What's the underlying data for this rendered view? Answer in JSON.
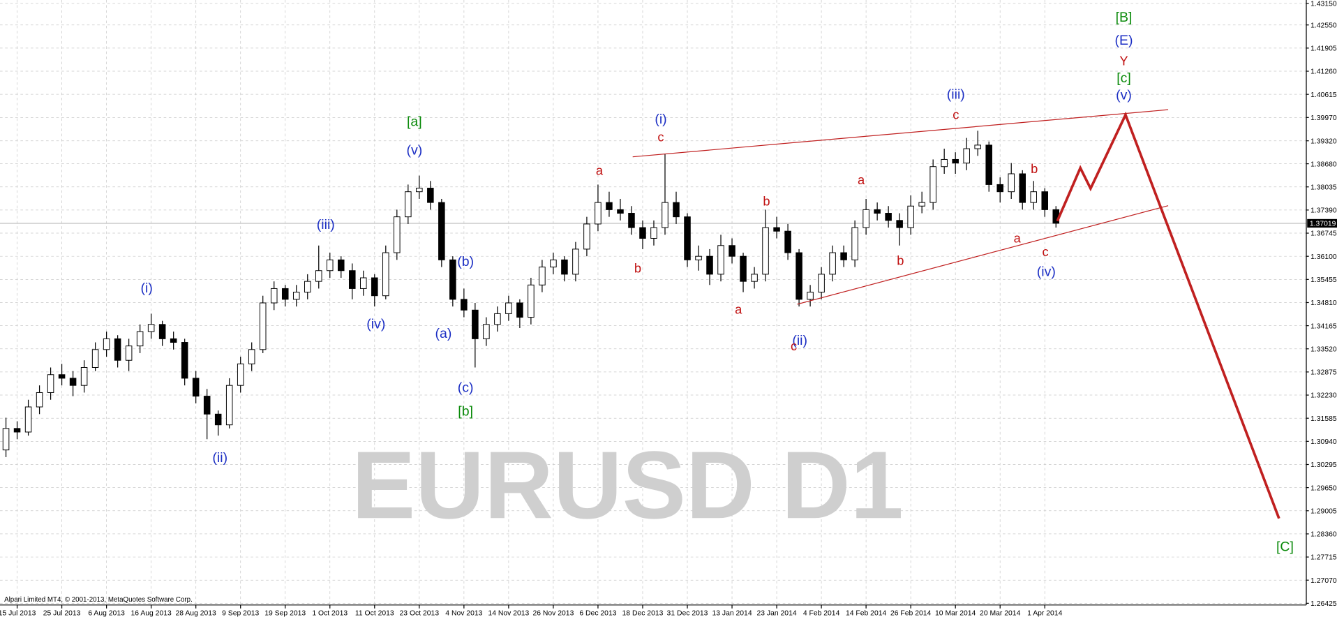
{
  "chart_data": {
    "type": "candlestick",
    "watermark": "EURUSD D1",
    "copyright": "Alpari Limited MT4, © 2001-2013, MetaQuotes Software Corp.",
    "current_price": 1.37019,
    "up_color": "#ffffff",
    "down_color": "#000000",
    "grid": true,
    "ylim": [
      1.26425,
      1.4315
    ],
    "yticks": [
      {
        "value": 1.4315,
        "label": "1.43150"
      },
      {
        "value": 1.4255,
        "label": "1.42550"
      },
      1.41905,
      {
        "value": 1.4126,
        "label": "1.41260"
      },
      1.40615,
      {
        "value": 1.3997,
        "label": "1.39970"
      },
      {
        "value": 1.3932,
        "label": "1.39320"
      },
      {
        "value": 1.3868,
        "label": "1.38680"
      },
      1.38035,
      {
        "value": 1.3739,
        "label": "1.37390"
      },
      1.36745,
      {
        "value": 1.361,
        "label": "1.36100"
      },
      1.35455,
      {
        "value": 1.3481,
        "label": "1.34810"
      },
      1.34165,
      {
        "value": 1.3352,
        "label": "1.33520"
      },
      1.32875,
      {
        "value": 1.3223,
        "label": "1.32230"
      },
      1.31585,
      {
        "value": 1.3094,
        "label": "1.30940"
      },
      1.30295,
      {
        "value": 1.2965,
        "label": "1.29650"
      },
      1.29005,
      {
        "value": 1.2836,
        "label": "1.28360"
      },
      1.27715,
      {
        "value": 1.2707,
        "label": "1.27070"
      },
      1.26425
    ],
    "categories": [
      null,
      "15 Jul 2013",
      null,
      null,
      null,
      "25 Jul 2013",
      null,
      null,
      null,
      "6 Aug 2013",
      null,
      null,
      null,
      "16 Aug 2013",
      null,
      null,
      null,
      "28 Aug 2013",
      null,
      null,
      null,
      "9 Sep 2013",
      null,
      null,
      null,
      "19 Sep 2013",
      null,
      null,
      null,
      "1 Oct 2013",
      null,
      null,
      null,
      "11 Oct 2013",
      null,
      null,
      null,
      "23 Oct 2013",
      null,
      null,
      null,
      "4 Nov 2013",
      null,
      null,
      null,
      "14 Nov 2013",
      null,
      null,
      null,
      "26 Nov 2013",
      null,
      null,
      null,
      "6 Dec 2013",
      null,
      null,
      null,
      "18 Dec 2013",
      null,
      null,
      null,
      "31 Dec 2013",
      null,
      null,
      null,
      "13 Jan 2014",
      null,
      null,
      null,
      "23 Jan 2014",
      null,
      null,
      null,
      "4 Feb 2014",
      null,
      null,
      null,
      "14 Feb 2014",
      null,
      null,
      null,
      "26 Feb 2014",
      null,
      null,
      null,
      "10 Mar 2014",
      null,
      null,
      null,
      "20 Mar 2014",
      null,
      null,
      null,
      "1 Apr 2014",
      null
    ],
    "open": [
      1.307,
      1.313,
      1.312,
      1.319,
      1.323,
      1.328,
      1.327,
      1.325,
      1.33,
      1.335,
      1.338,
      1.332,
      1.336,
      1.34,
      1.342,
      1.338,
      1.337,
      1.327,
      1.322,
      1.317,
      1.314,
      1.325,
      1.331,
      1.335,
      1.348,
      1.352,
      1.349,
      1.351,
      1.354,
      1.357,
      1.36,
      1.357,
      1.352,
      1.355,
      1.35,
      1.362,
      1.372,
      1.379,
      1.38,
      1.376,
      1.36,
      1.349,
      1.346,
      1.338,
      1.342,
      1.345,
      1.348,
      1.344,
      1.353,
      1.358,
      1.36,
      1.356,
      1.363,
      1.37,
      1.376,
      1.374,
      1.373,
      1.369,
      1.366,
      1.369,
      1.376,
      1.372,
      1.36,
      1.361,
      1.356,
      1.364,
      1.361,
      1.354,
      1.356,
      1.369,
      1.368,
      1.362,
      1.349,
      1.351,
      1.356,
      1.362,
      1.36,
      1.369,
      1.374,
      1.373,
      1.371,
      1.369,
      1.375,
      1.376,
      1.386,
      1.388,
      1.387,
      1.391,
      1.392,
      1.381,
      1.379,
      1.384,
      1.376,
      1.379,
      1.374
    ],
    "high": [
      1.316,
      1.315,
      1.321,
      1.325,
      1.33,
      1.331,
      1.329,
      1.332,
      1.337,
      1.34,
      1.339,
      1.338,
      1.342,
      1.345,
      1.343,
      1.34,
      1.338,
      1.329,
      1.324,
      1.318,
      1.327,
      1.333,
      1.337,
      1.35,
      1.354,
      1.353,
      1.353,
      1.356,
      1.364,
      1.362,
      1.361,
      1.359,
      1.357,
      1.356,
      1.364,
      1.374,
      1.381,
      1.3835,
      1.382,
      1.377,
      1.361,
      1.352,
      1.348,
      1.344,
      1.347,
      1.35,
      1.349,
      1.355,
      1.36,
      1.362,
      1.361,
      1.365,
      1.372,
      1.381,
      1.379,
      1.377,
      1.375,
      1.371,
      1.371,
      1.3895,
      1.379,
      1.373,
      1.364,
      1.363,
      1.367,
      1.366,
      1.362,
      1.358,
      1.374,
      1.372,
      1.37,
      1.363,
      1.353,
      1.358,
      1.364,
      1.364,
      1.371,
      1.377,
      1.376,
      1.375,
      1.373,
      1.378,
      1.379,
      1.388,
      1.391,
      1.39,
      1.394,
      1.396,
      1.393,
      1.383,
      1.387,
      1.385,
      1.382,
      1.38,
      1.375
    ],
    "low": [
      1.305,
      1.31,
      1.311,
      1.317,
      1.321,
      1.325,
      1.322,
      1.323,
      1.329,
      1.333,
      1.33,
      1.329,
      1.334,
      1.338,
      1.336,
      1.335,
      1.325,
      1.32,
      1.31,
      1.311,
      1.313,
      1.323,
      1.329,
      1.334,
      1.346,
      1.347,
      1.347,
      1.349,
      1.352,
      1.355,
      1.355,
      1.349,
      1.35,
      1.347,
      1.349,
      1.36,
      1.37,
      1.377,
      1.374,
      1.358,
      1.347,
      1.344,
      1.33,
      1.336,
      1.34,
      1.343,
      1.341,
      1.342,
      1.351,
      1.356,
      1.354,
      1.354,
      1.361,
      1.368,
      1.372,
      1.371,
      1.367,
      1.363,
      1.364,
      1.367,
      1.37,
      1.358,
      1.357,
      1.353,
      1.354,
      1.359,
      1.351,
      1.352,
      1.354,
      1.366,
      1.36,
      1.347,
      1.347,
      1.349,
      1.354,
      1.358,
      1.358,
      1.367,
      1.371,
      1.369,
      1.364,
      1.367,
      1.373,
      1.374,
      1.384,
      1.384,
      1.385,
      1.389,
      1.379,
      1.376,
      1.377,
      1.374,
      1.374,
      1.372,
      1.369
    ],
    "close": [
      1.313,
      1.312,
      1.319,
      1.323,
      1.328,
      1.327,
      1.325,
      1.33,
      1.335,
      1.338,
      1.332,
      1.336,
      1.34,
      1.342,
      1.338,
      1.337,
      1.327,
      1.322,
      1.317,
      1.314,
      1.325,
      1.331,
      1.335,
      1.348,
      1.352,
      1.349,
      1.351,
      1.354,
      1.357,
      1.36,
      1.357,
      1.352,
      1.355,
      1.35,
      1.362,
      1.372,
      1.379,
      1.38,
      1.376,
      1.36,
      1.349,
      1.346,
      1.338,
      1.342,
      1.345,
      1.348,
      1.344,
      1.353,
      1.358,
      1.36,
      1.356,
      1.363,
      1.37,
      1.376,
      1.374,
      1.373,
      1.369,
      1.366,
      1.369,
      1.376,
      1.372,
      1.36,
      1.361,
      1.356,
      1.364,
      1.361,
      1.354,
      1.356,
      1.369,
      1.368,
      1.362,
      1.349,
      1.351,
      1.356,
      1.362,
      1.36,
      1.369,
      1.374,
      1.373,
      1.371,
      1.369,
      1.375,
      1.376,
      1.386,
      1.388,
      1.387,
      1.391,
      1.392,
      1.381,
      1.379,
      1.384,
      1.376,
      1.379,
      1.374,
      1.3702
    ],
    "wave_labels": [
      "(i)",
      "(ii)",
      "(iii)",
      "(iv)",
      "(v)",
      "(a)",
      "(b)",
      "(c)",
      "(i)",
      "(ii)",
      "(iii)",
      "(iv)",
      "(v)",
      "(E)",
      "[a]",
      "[b]",
      "[c]",
      "[B]",
      "[C]",
      "a",
      "b",
      "c",
      "a",
      "b",
      "c",
      "a",
      "b",
      "c",
      "b",
      "a",
      "c",
      "Y"
    ]
  }
}
